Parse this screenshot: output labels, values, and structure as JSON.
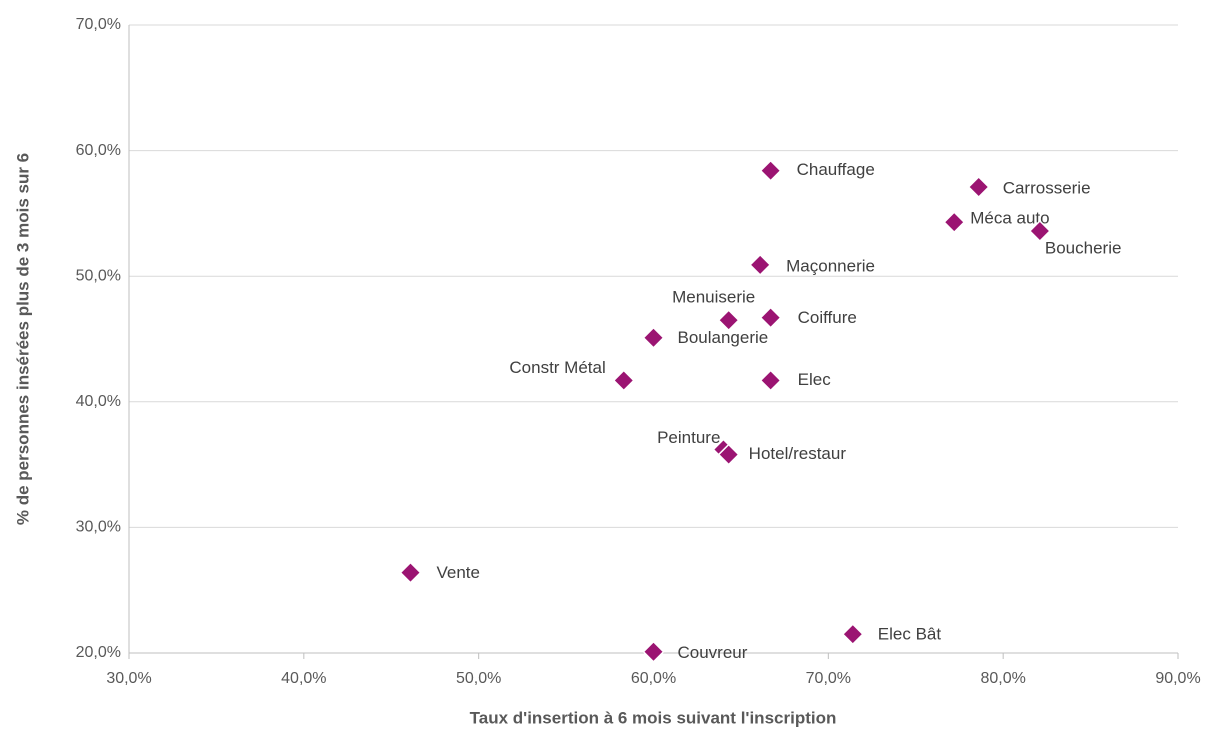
{
  "chart_data": {
    "type": "scatter",
    "x_label": "Taux d'insertion à 6 mois suivant l'inscription",
    "y_label": "% de personnes insérées plus de 3 mois sur 6",
    "labels": [
      "Chauffage",
      "Carrosserie",
      "Méca auto",
      "Boucherie",
      "Maçonnerie",
      "Menuiserie",
      "Coiffure",
      "Boulangerie",
      "Constr Métal",
      "Elec",
      "Peinture",
      "Hotel/restaur",
      "Vente",
      "Elec Bât",
      "Couvreur"
    ],
    "x": [
      66.7,
      78.6,
      77.2,
      82.1,
      66.1,
      64.3,
      66.7,
      60.0,
      58.3,
      66.7,
      64.0,
      64.3,
      46.1,
      71.4,
      60.0
    ],
    "values": [
      58.4,
      57.1,
      54.3,
      53.6,
      50.9,
      46.5,
      46.7,
      45.1,
      41.7,
      41.7,
      36.2,
      35.8,
      26.4,
      21.5,
      20.1
    ],
    "color": "#9b1472",
    "xlim": [
      30,
      90
    ],
    "xticks": [
      {
        "value": 30,
        "label": "30,0%"
      },
      {
        "value": 40,
        "label": "40,0%"
      },
      {
        "value": 50,
        "label": "50,0%"
      },
      {
        "value": 60,
        "label": "60,0%"
      },
      {
        "value": 70,
        "label": "70,0%"
      },
      {
        "value": 80,
        "label": "80,0%"
      },
      {
        "value": 90,
        "label": "90,0%"
      }
    ],
    "ylim": [
      20,
      70
    ],
    "yticks": [
      {
        "value": 20,
        "label": "20,0%"
      },
      {
        "value": 30,
        "label": "30,0%"
      },
      {
        "value": 40,
        "label": "40,0%"
      },
      {
        "value": 50,
        "label": "50,0%"
      },
      {
        "value": 60,
        "label": "60,0%"
      },
      {
        "value": 70,
        "label": "70,0%"
      }
    ],
    "grid": true
  }
}
